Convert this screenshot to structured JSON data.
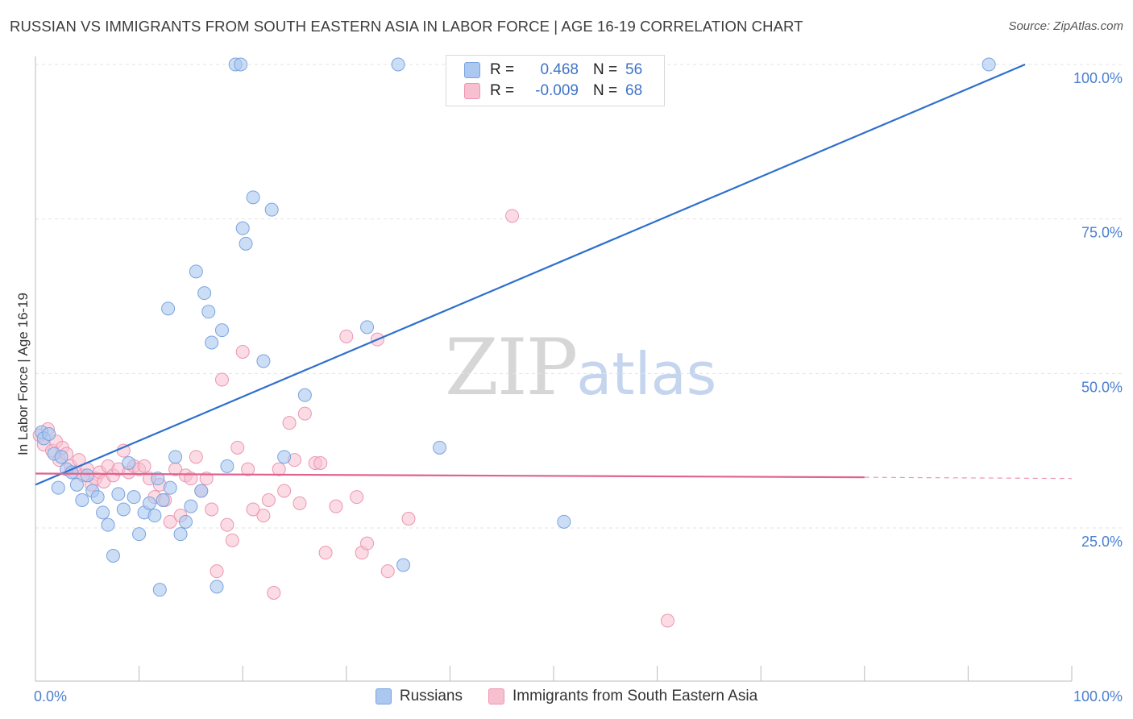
{
  "title": "RUSSIAN VS IMMIGRANTS FROM SOUTH EASTERN ASIA IN LABOR FORCE | AGE 16-19 CORRELATION CHART",
  "source": "Source: ZipAtlas.com",
  "watermark": {
    "zip": "ZIP",
    "atlas": "atlas"
  },
  "legend": {
    "r_label": "R =",
    "n_label": "N =",
    "rows": [
      {
        "r_value": "0.468",
        "n_value": "56"
      },
      {
        "r_value": "-0.009",
        "n_value": "68"
      }
    ]
  },
  "bottom_legend": [
    "Russians",
    "Immigrants from South Eastern Asia"
  ],
  "colors": {
    "blue_fill": "#aac8f0",
    "blue_stroke": "#7aa3de",
    "blue_line": "#2f6fce",
    "pink_fill": "#f7c0d0",
    "pink_stroke": "#ec95b2",
    "pink_line": "#e0628e",
    "grid": "#e3e3e3",
    "tick_label": "#4a7fd1"
  },
  "chart_data": {
    "type": "scatter",
    "title": "RUSSIAN VS IMMIGRANTS FROM SOUTH EASTERN ASIA IN LABOR FORCE | AGE 16-19 CORRELATION CHART",
    "xlabel": "",
    "ylabel": "In Labor Force | Age 16-19",
    "xlim": [
      0,
      100
    ],
    "ylim": [
      0,
      102
    ],
    "x_tick_labels": [
      "0.0%",
      "100.0%"
    ],
    "y_ticks": [
      25,
      50,
      75,
      100
    ],
    "y_tick_labels": [
      "25.0%",
      "50.0%",
      "75.0%",
      "100.0%"
    ],
    "series": [
      {
        "name": "Russians",
        "r": 0.468,
        "n": 56,
        "trend": {
          "x": [
            0,
            95.5
          ],
          "y": [
            32.0,
            100.0
          ]
        },
        "points": [
          [
            0.6,
            40.5
          ],
          [
            0.8,
            39.5
          ],
          [
            1.3,
            40.2
          ],
          [
            1.8,
            37.0
          ],
          [
            2.2,
            31.5
          ],
          [
            2.5,
            36.5
          ],
          [
            3.0,
            34.5
          ],
          [
            3.5,
            34.0
          ],
          [
            4.0,
            32.0
          ],
          [
            4.5,
            29.5
          ],
          [
            5.0,
            33.5
          ],
          [
            5.5,
            31.0
          ],
          [
            6.0,
            30.0
          ],
          [
            6.5,
            27.5
          ],
          [
            7.0,
            25.5
          ],
          [
            7.5,
            20.5
          ],
          [
            8.0,
            30.5
          ],
          [
            8.5,
            28.0
          ],
          [
            9.0,
            35.5
          ],
          [
            9.5,
            30.0
          ],
          [
            10.0,
            24.0
          ],
          [
            10.5,
            27.5
          ],
          [
            11.0,
            29.0
          ],
          [
            11.5,
            27.0
          ],
          [
            11.8,
            33.0
          ],
          [
            12.0,
            15.0
          ],
          [
            12.3,
            29.5
          ],
          [
            12.8,
            60.5
          ],
          [
            13.0,
            31.5
          ],
          [
            13.5,
            36.5
          ],
          [
            14.0,
            24.0
          ],
          [
            14.5,
            26.0
          ],
          [
            15.0,
            28.5
          ],
          [
            15.5,
            66.5
          ],
          [
            16.0,
            31.0
          ],
          [
            16.3,
            63.0
          ],
          [
            16.7,
            60.0
          ],
          [
            17.0,
            55.0
          ],
          [
            17.5,
            15.5
          ],
          [
            18.0,
            57.0
          ],
          [
            18.5,
            35.0
          ],
          [
            19.3,
            100.0
          ],
          [
            19.8,
            100.0
          ],
          [
            20.0,
            73.5
          ],
          [
            20.3,
            71.0
          ],
          [
            21.0,
            78.5
          ],
          [
            22.0,
            52.0
          ],
          [
            22.8,
            76.5
          ],
          [
            24.0,
            36.5
          ],
          [
            26.0,
            46.5
          ],
          [
            32.0,
            57.5
          ],
          [
            35.0,
            100.0
          ],
          [
            35.5,
            19.0
          ],
          [
            39.0,
            38.0
          ],
          [
            51.0,
            26.0
          ],
          [
            92.0,
            100.0
          ]
        ]
      },
      {
        "name": "Immigrants from South Eastern Asia",
        "r": -0.009,
        "n": 68,
        "trend": {
          "x": [
            0,
            80
          ],
          "y": [
            33.8,
            33.2
          ]
        },
        "trend_dashed": {
          "x": [
            80,
            100
          ],
          "y": [
            33.2,
            33.0
          ]
        },
        "points": [
          [
            0.4,
            40.0
          ],
          [
            0.8,
            38.5
          ],
          [
            1.2,
            41.0
          ],
          [
            1.6,
            37.5
          ],
          [
            2.0,
            39.0
          ],
          [
            2.3,
            36.0
          ],
          [
            2.6,
            38.0
          ],
          [
            3.0,
            37.0
          ],
          [
            3.4,
            35.0
          ],
          [
            3.8,
            34.0
          ],
          [
            4.2,
            36.0
          ],
          [
            4.6,
            33.5
          ],
          [
            5.0,
            34.5
          ],
          [
            5.4,
            32.0
          ],
          [
            5.8,
            33.0
          ],
          [
            6.2,
            34.0
          ],
          [
            6.6,
            32.5
          ],
          [
            7.0,
            35.0
          ],
          [
            7.5,
            33.5
          ],
          [
            8.0,
            34.5
          ],
          [
            8.5,
            37.5
          ],
          [
            9.0,
            34.0
          ],
          [
            9.5,
            35.0
          ],
          [
            10.0,
            34.5
          ],
          [
            10.5,
            35.0
          ],
          [
            11.0,
            33.0
          ],
          [
            11.5,
            30.0
          ],
          [
            12.0,
            32.0
          ],
          [
            12.5,
            29.5
          ],
          [
            13.0,
            26.0
          ],
          [
            13.5,
            34.5
          ],
          [
            14.0,
            27.0
          ],
          [
            14.5,
            33.5
          ],
          [
            15.0,
            33.0
          ],
          [
            15.5,
            36.5
          ],
          [
            16.0,
            31.0
          ],
          [
            16.5,
            33.0
          ],
          [
            17.0,
            28.0
          ],
          [
            17.5,
            18.0
          ],
          [
            18.0,
            49.0
          ],
          [
            18.5,
            25.5
          ],
          [
            19.0,
            23.0
          ],
          [
            19.5,
            38.0
          ],
          [
            20.0,
            53.5
          ],
          [
            20.5,
            34.5
          ],
          [
            21.0,
            28.0
          ],
          [
            22.0,
            27.0
          ],
          [
            22.5,
            29.5
          ],
          [
            23.0,
            14.5
          ],
          [
            23.5,
            34.5
          ],
          [
            24.0,
            31.0
          ],
          [
            24.5,
            42.0
          ],
          [
            25.0,
            36.0
          ],
          [
            25.5,
            29.0
          ],
          [
            26.0,
            43.5
          ],
          [
            27.0,
            35.5
          ],
          [
            27.5,
            35.5
          ],
          [
            28.0,
            21.0
          ],
          [
            29.0,
            28.5
          ],
          [
            30.0,
            56.0
          ],
          [
            31.0,
            30.0
          ],
          [
            31.5,
            21.0
          ],
          [
            32.0,
            22.5
          ],
          [
            33.0,
            55.5
          ],
          [
            34.0,
            18.0
          ],
          [
            36.0,
            26.5
          ],
          [
            46.0,
            75.5
          ],
          [
            61.0,
            10.0
          ]
        ]
      }
    ]
  }
}
